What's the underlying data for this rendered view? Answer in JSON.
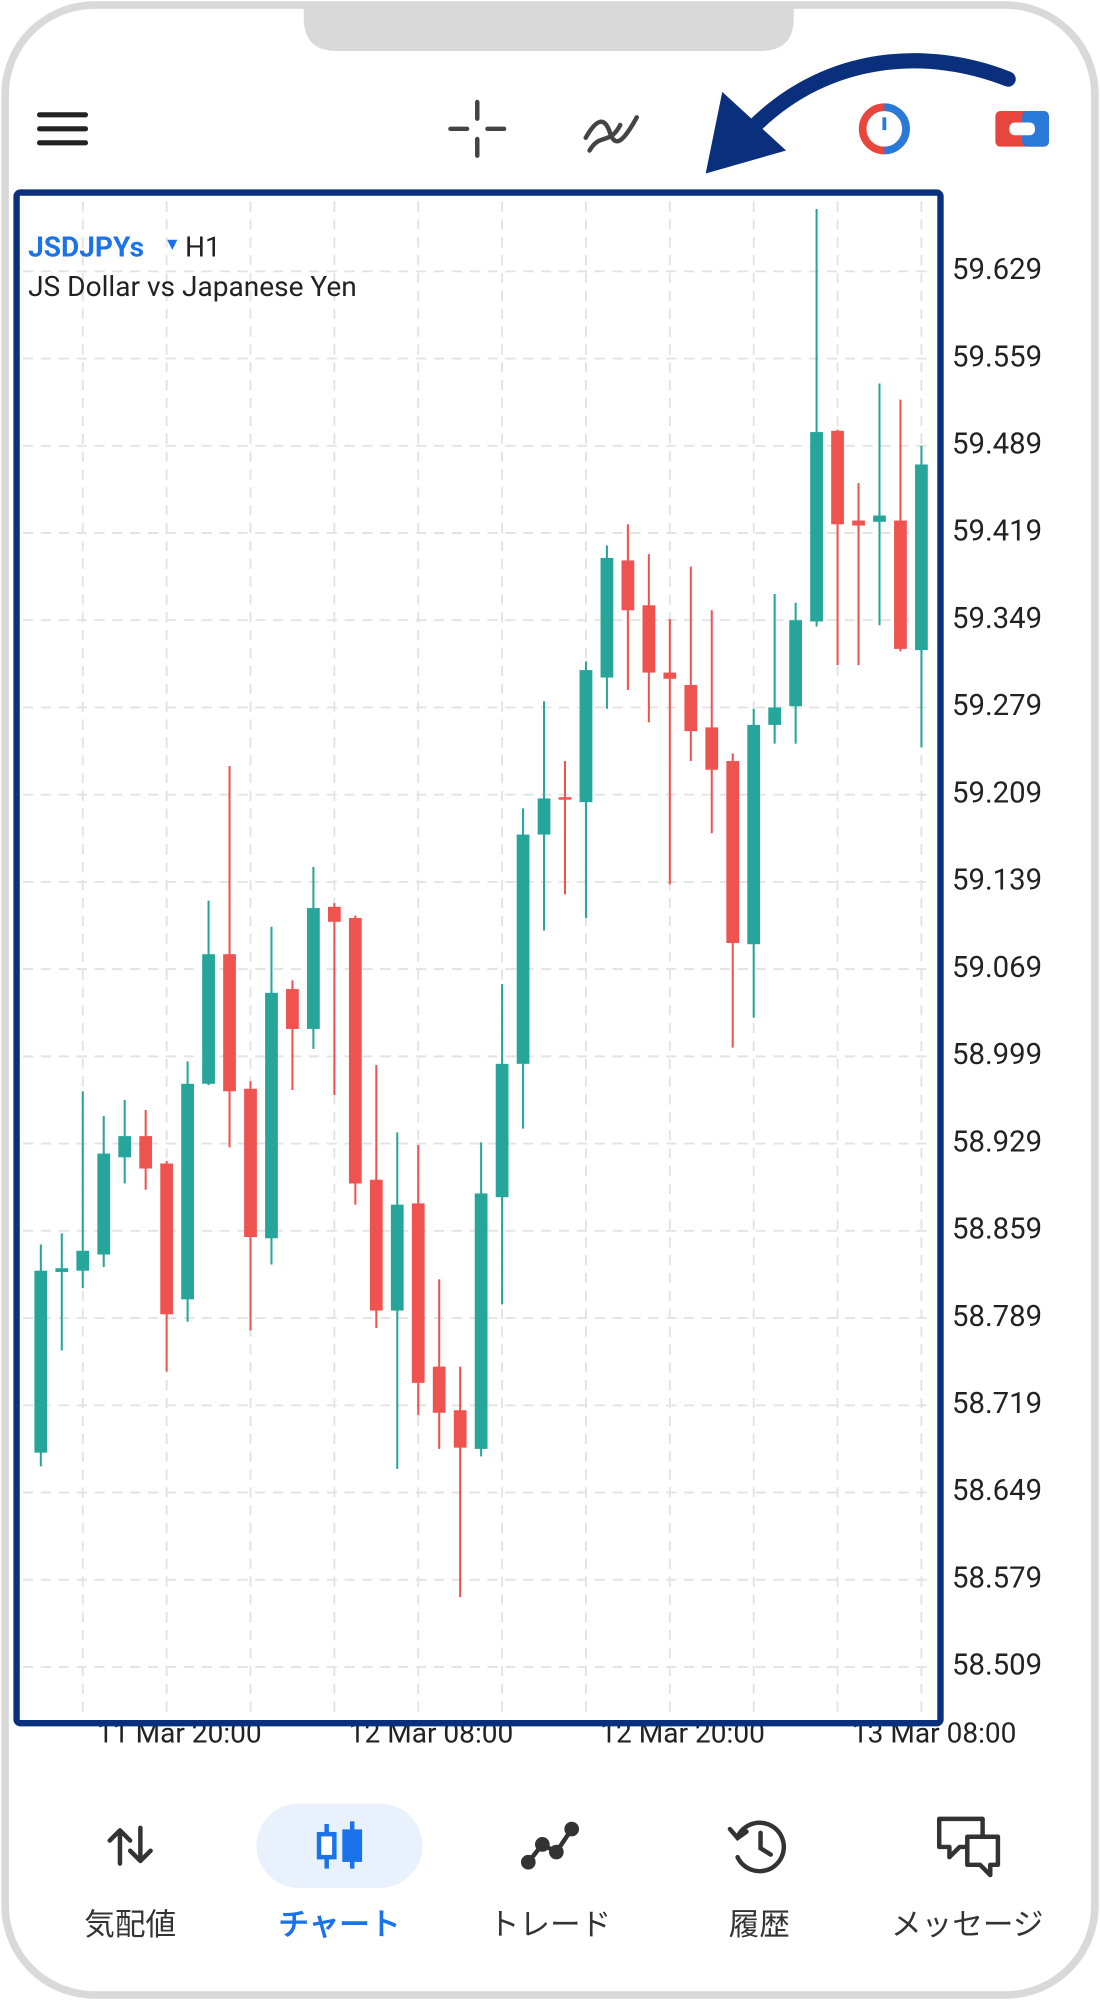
{
  "chart_data": {
    "type": "candlestick",
    "symbol": "JSDJPYs",
    "timeframe": "H1",
    "description": "JS Dollar vs Japanese Yen",
    "categories": [
      null,
      null,
      null,
      null,
      null,
      null,
      "11 Mar 20:00",
      null,
      null,
      null,
      null,
      null,
      null,
      null,
      null,
      null,
      null,
      null,
      "12 Mar 08:00",
      null,
      null,
      null,
      null,
      null,
      null,
      null,
      null,
      null,
      null,
      null,
      "12 Mar 20:00",
      null,
      null,
      null,
      null,
      null,
      null,
      null,
      null,
      null,
      null,
      null,
      "13 Mar 08:00"
    ],
    "open": [
      58.681,
      58.826,
      58.827,
      58.84,
      58.918,
      58.935,
      58.913,
      58.804,
      58.977,
      59.081,
      58.973,
      58.853,
      59.053,
      59.021,
      59.119,
      59.11,
      58.9,
      58.795,
      58.881,
      58.75,
      58.715,
      58.684,
      58.886,
      58.993,
      59.177,
      59.207,
      59.203,
      59.303,
      59.397,
      59.361,
      59.307,
      59.297,
      59.263,
      59.236,
      59.089,
      59.265,
      59.28,
      59.348,
      59.501,
      59.429,
      59.428,
      59.429,
      59.325
    ],
    "high": [
      58.848,
      58.857,
      58.971,
      58.951,
      58.964,
      58.956,
      58.915,
      58.995,
      59.124,
      59.232,
      58.979,
      59.103,
      59.06,
      59.151,
      59.122,
      59.112,
      58.992,
      58.938,
      58.928,
      58.82,
      58.75,
      58.93,
      59.057,
      59.198,
      59.284,
      59.236,
      59.316,
      59.409,
      59.426,
      59.402,
      59.35,
      59.392,
      59.357,
      59.242,
      59.278,
      59.37,
      59.363,
      59.679,
      59.502,
      59.459,
      59.539,
      59.526,
      59.489
    ],
    "low": [
      58.67,
      58.763,
      58.813,
      58.83,
      58.897,
      58.892,
      58.746,
      58.786,
      58.976,
      58.926,
      58.779,
      58.832,
      58.972,
      59.005,
      58.968,
      58.88,
      58.781,
      58.668,
      58.711,
      58.684,
      58.565,
      58.678,
      58.8,
      58.941,
      59.1,
      59.129,
      59.11,
      59.278,
      59.293,
      59.267,
      59.137,
      59.236,
      59.178,
      59.006,
      59.03,
      59.25,
      59.25,
      59.344,
      59.313,
      59.313,
      59.345,
      59.324,
      59.247
    ],
    "close": [
      58.827,
      58.829,
      58.843,
      58.921,
      58.935,
      58.909,
      58.792,
      58.977,
      59.081,
      58.971,
      58.854,
      59.05,
      59.021,
      59.118,
      59.107,
      58.897,
      58.795,
      58.88,
      58.737,
      58.713,
      58.685,
      58.889,
      58.993,
      59.177,
      59.206,
      59.205,
      59.309,
      59.399,
      59.357,
      59.307,
      59.302,
      59.26,
      59.229,
      59.09,
      59.265,
      59.279,
      59.349,
      59.5,
      59.426,
      59.425,
      59.433,
      59.326,
      59.474
    ],
    "up_color": "#26a69a",
    "down_color": "#ef5350",
    "ylim": [
      58.47,
      59.685
    ],
    "yticks": [
      58.509,
      58.579,
      58.649,
      58.719,
      58.789,
      58.859,
      58.929,
      58.999,
      59.069,
      59.139,
      59.209,
      59.279,
      59.349,
      59.419,
      59.489,
      59.559,
      59.629
    ],
    "grid": true
  },
  "nav": {
    "items": [
      {
        "label": "気配値",
        "active": false
      },
      {
        "label": "チャート",
        "active": true
      },
      {
        "label": "トレード",
        "active": false
      },
      {
        "label": "履歴",
        "active": false
      },
      {
        "label": "メッセージ",
        "active": false
      }
    ]
  }
}
